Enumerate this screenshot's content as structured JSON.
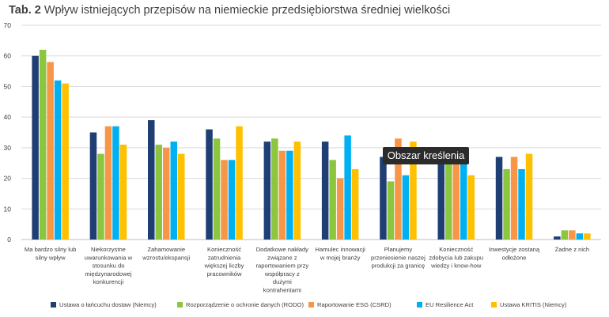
{
  "title_bold": "Tab. 2",
  "title_rest": "Wpływ istniejących przepisów na niemieckie przedsiębiorstwa średniej wielkości",
  "tooltip": "Obszar kreślenia",
  "colors": [
    "#1f3f74",
    "#8cc63f",
    "#f79646",
    "#00b0f0",
    "#ffc000"
  ],
  "chart_data": {
    "type": "bar",
    "title": "Tab. 2 Wpływ istniejących przepisów na niemieckie przedsiębiorstwa średniej wielkości",
    "ylim": [
      0,
      70
    ],
    "yticks": [
      0,
      10,
      20,
      30,
      40,
      50,
      60,
      70
    ],
    "grid": true,
    "legend_position": "bottom",
    "categories": [
      [
        "Ma bardzo silny lub",
        "silny wpływ"
      ],
      [
        "Niekorzystne",
        "uwarunkowania w",
        "stosunku do",
        "międzynarodowej",
        "konkurencji"
      ],
      [
        "Zahamowanie",
        "wzrostu/ekspansji"
      ],
      [
        "Konieczność",
        "zatrudnienia",
        "większej liczby",
        "pracowników"
      ],
      [
        "Dodatkowe nakłady",
        "związane z",
        "raportowaniem przy",
        "współpracy z",
        "dużymi",
        "kontrahentami"
      ],
      [
        "Hamulec innowacji",
        "w mojej branży"
      ],
      [
        "Planujemy",
        "przeniesienie naszej",
        "produkcji za granicę"
      ],
      [
        "Konieczność",
        "zdobycia lub zakupu",
        "wiedzy i know-how"
      ],
      [
        "Inwestycje zostaną",
        "odłożone"
      ],
      [
        "Żadne z nich"
      ]
    ],
    "series": [
      {
        "name": "Ustawa o łańcuchu dostaw (Niemcy)",
        "values": [
          60,
          35,
          39,
          36,
          32,
          32,
          27,
          27,
          27,
          1
        ]
      },
      {
        "name": "Rozporządzenie o ochronie danych (RODO)",
        "values": [
          62,
          28,
          31,
          33,
          33,
          26,
          19,
          25,
          23,
          3
        ]
      },
      {
        "name": "Raportowanie ESG (CSRD)",
        "values": [
          58,
          37,
          30,
          26,
          29,
          20,
          33,
          26,
          27,
          3
        ]
      },
      {
        "name": "EU Resilience Act",
        "values": [
          52,
          37,
          32,
          26,
          29,
          34,
          21,
          26,
          23,
          2
        ]
      },
      {
        "name": "Ustawa KRITIS (Niemcy)",
        "values": [
          51,
          31,
          28,
          37,
          32,
          23,
          32,
          21,
          28,
          2
        ]
      }
    ]
  }
}
